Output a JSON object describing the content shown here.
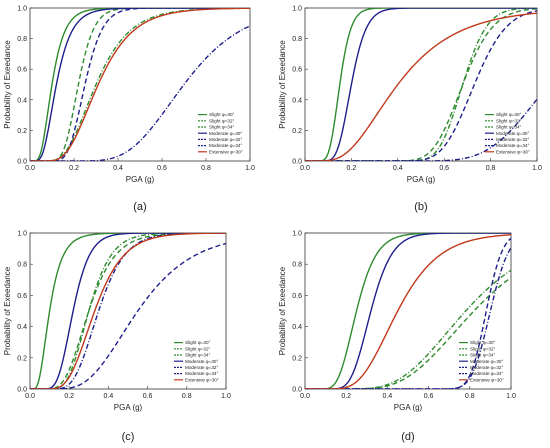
{
  "figure": {
    "panel_labels": [
      "(a)",
      "(b)",
      "(c)",
      "(d)"
    ]
  },
  "chart_data": [
    {
      "type": "line",
      "panel": "(a)",
      "xlabel": "PGA (g)",
      "ylabel": "Probability of Exeedance",
      "xlim": [
        0,
        1.0
      ],
      "ylim": [
        0,
        1.0
      ],
      "xticks": [
        "0.0",
        "0.2",
        "0.4",
        "0.6",
        "0.8",
        "1.0"
      ],
      "yticks": [
        "0.0",
        "0.2",
        "0.4",
        "0.6",
        "0.8",
        "1.0"
      ],
      "grid": false,
      "legend_position": "right",
      "series": [
        {
          "name": "Slight φ=30°",
          "color": "#2e8b2e",
          "dash": "solid",
          "median": 0.1,
          "beta": 0.45
        },
        {
          "name": "Slight φ=32°",
          "color": "#2e8b2e",
          "dash": "dash",
          "median": 0.22,
          "beta": 0.25
        },
        {
          "name": "Slight φ=34°",
          "color": "#2e8b2e",
          "dash": "dashdot",
          "median": 0.3,
          "beta": 0.4
        },
        {
          "name": "Moderate φ=30°",
          "color": "#1f1f8c",
          "dash": "solid",
          "median": 0.12,
          "beta": 0.45
        },
        {
          "name": "Moderate φ=32°",
          "color": "#1f1f8c",
          "dash": "dash",
          "median": 0.25,
          "beta": 0.25
        },
        {
          "name": "Moderate φ=34°",
          "color": "#1f1f8c",
          "dash": "dashdot",
          "median": 0.7,
          "beta": 0.3
        },
        {
          "name": "Extensive φ=30°",
          "color": "#c0391b",
          "dash": "solid",
          "median": 0.31,
          "beta": 0.4
        }
      ]
    },
    {
      "type": "line",
      "panel": "(b)",
      "xlabel": "PGA (g)",
      "ylabel": "Probability of Exeedance",
      "xlim": [
        0,
        1.0
      ],
      "ylim": [
        0,
        1.0
      ],
      "xticks": [
        "0.0",
        "0.2",
        "0.4",
        "0.6",
        "0.8",
        "1.0"
      ],
      "yticks": [
        "0.0",
        "0.2",
        "0.4",
        "0.6",
        "0.8",
        "1.0"
      ],
      "grid": false,
      "legend_position": "right",
      "series": [
        {
          "name": "Slight φ=30°",
          "color": "#2e8b2e",
          "dash": "solid",
          "median": 0.15,
          "beta": 0.25
        },
        {
          "name": "Slight φ=32°",
          "color": "#2e8b2e",
          "dash": "dash",
          "median": 0.68,
          "beta": 0.15
        },
        {
          "name": "Slight φ=34°",
          "color": "#2e8b2e",
          "dash": "dashdot",
          "median": 0.68,
          "beta": 0.12
        },
        {
          "name": "Moderate φ=30°",
          "color": "#1f1f8c",
          "dash": "solid",
          "median": 0.2,
          "beta": 0.25
        },
        {
          "name": "Moderate φ=32°",
          "color": "#1f1f8c",
          "dash": "dash",
          "median": 0.73,
          "beta": 0.15
        },
        {
          "name": "Moderate φ=34°",
          "color": "#1f1f8c",
          "dash": "dashdot",
          "median": 1.05,
          "beta": 0.2
        },
        {
          "name": "Extensive φ=30°",
          "color": "#c0391b",
          "dash": "solid",
          "median": 0.4,
          "beta": 0.5
        }
      ]
    },
    {
      "type": "line",
      "panel": "(c)",
      "xlabel": "PGA (g)",
      "ylabel": "Probability of Exeedance",
      "xlim": [
        0,
        1.0
      ],
      "ylim": [
        0,
        1.0
      ],
      "xticks": [
        "0.0",
        "0.2",
        "0.4",
        "0.6",
        "0.8",
        "1.0"
      ],
      "yticks": [
        "0.0",
        "0.2",
        "0.4",
        "0.6",
        "0.8",
        "1.0"
      ],
      "grid": false,
      "legend_position": "right",
      "series": [
        {
          "name": "Slight φ=30°",
          "color": "#2e8b2e",
          "dash": "solid",
          "median": 0.1,
          "beta": 0.5
        },
        {
          "name": "Slight φ=32°",
          "color": "#2e8b2e",
          "dash": "dash",
          "median": 0.3,
          "beta": 0.35
        },
        {
          "name": "Slight φ=34°",
          "color": "#2e8b2e",
          "dash": "dashdot",
          "median": 0.3,
          "beta": 0.3
        },
        {
          "name": "Moderate φ=30°",
          "color": "#1f1f8c",
          "dash": "solid",
          "median": 0.22,
          "beta": 0.3
        },
        {
          "name": "Moderate φ=32°",
          "color": "#1f1f8c",
          "dash": "dash",
          "median": 0.55,
          "beta": 0.4
        },
        {
          "name": "Moderate φ=34°",
          "color": "#1f1f8c",
          "dash": "dashdot",
          "median": 0.35,
          "beta": 0.3
        },
        {
          "name": "Extensive φ=30°",
          "color": "#c0391b",
          "dash": "solid",
          "median": 0.33,
          "beta": 0.35
        }
      ]
    },
    {
      "type": "line",
      "panel": "(d)",
      "xlabel": "PGA (g)",
      "ylabel": "Probability of Exeedance",
      "xlim": [
        0,
        1.0
      ],
      "ylim": [
        0,
        1.0
      ],
      "xticks": [
        "0.0",
        "0.2",
        "0.4",
        "0.6",
        "0.8",
        "1.0"
      ],
      "yticks": [
        "0.0",
        "0.2",
        "0.4",
        "0.6",
        "0.8",
        "1.0"
      ],
      "grid": false,
      "legend_position": "right",
      "series": [
        {
          "name": "Slight φ=30°",
          "color": "#2e8b2e",
          "dash": "solid",
          "median": 0.25,
          "beta": 0.3
        },
        {
          "name": "Slight φ=32°",
          "color": "#2e8b2e",
          "dash": "dash",
          "median": 0.82,
          "beta": 0.35
        },
        {
          "name": "Slight φ=34°",
          "color": "#2e8b2e",
          "dash": "dashdot",
          "median": 0.78,
          "beta": 0.35
        },
        {
          "name": "Moderate φ=30°",
          "color": "#1f1f8c",
          "dash": "solid",
          "median": 0.32,
          "beta": 0.25
        },
        {
          "name": "Moderate φ=32°",
          "color": "#1f1f8c",
          "dash": "dash",
          "median": 0.88,
          "beta": 0.07
        },
        {
          "name": "Moderate φ=34°",
          "color": "#1f1f8c",
          "dash": "dashdot",
          "median": 0.9,
          "beta": 0.08
        },
        {
          "name": "Extensive φ=30°",
          "color": "#c0391b",
          "dash": "solid",
          "median": 0.45,
          "beta": 0.35
        }
      ]
    }
  ]
}
